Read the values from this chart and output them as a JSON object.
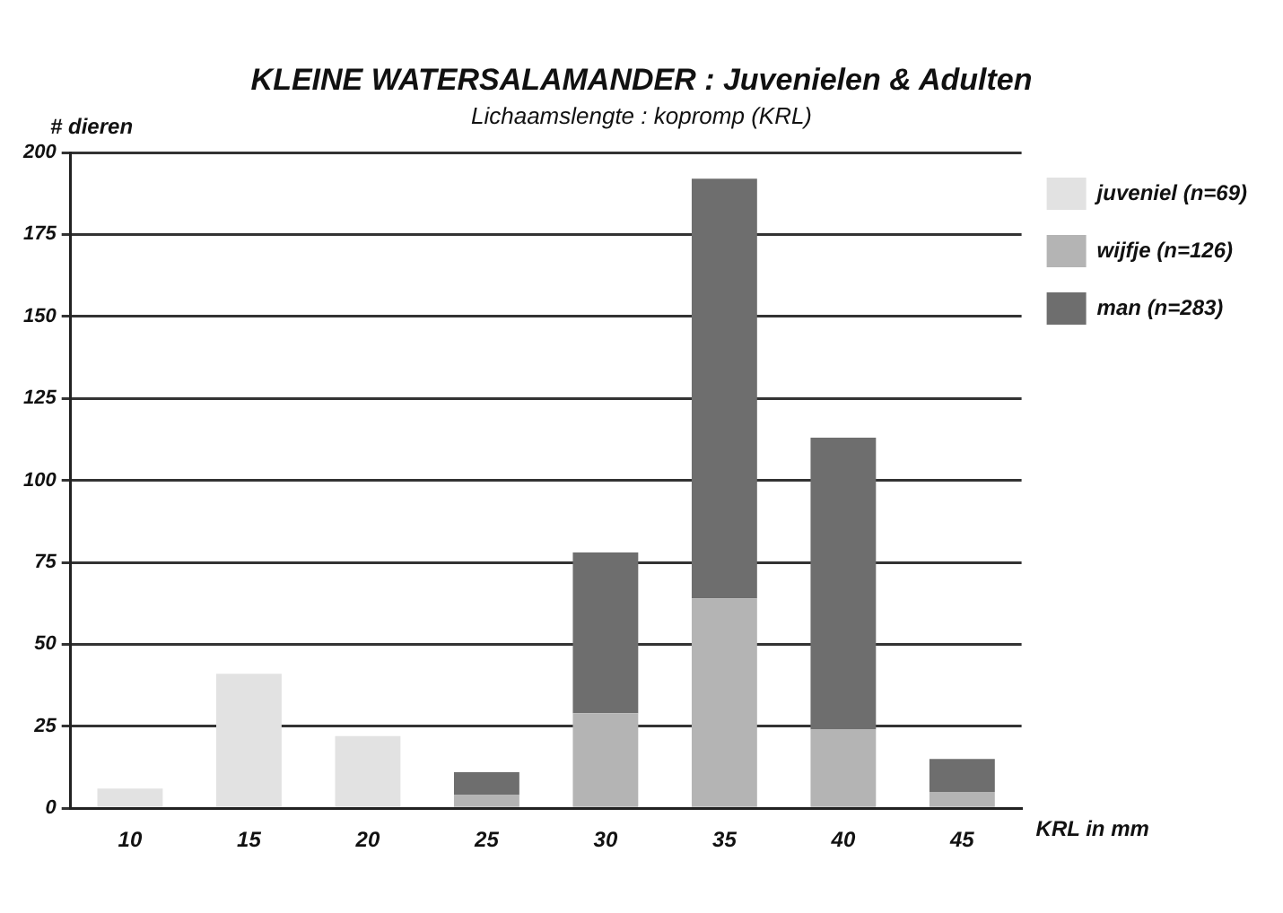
{
  "chart_data": {
    "type": "bar",
    "title": "KLEINE WATERSALAMANDER : Juvenielen & Adulten",
    "subtitle": "Lichaamslengte : kopromp (KRL)",
    "xlabel": "KRL in mm",
    "ylabel": "# dieren",
    "categories": [
      "10",
      "15",
      "20",
      "25",
      "30",
      "35",
      "40",
      "45"
    ],
    "series": [
      {
        "name": "juveniel (n=69)",
        "color": "#e2e2e2",
        "values": [
          6,
          41,
          22,
          0,
          0,
          0,
          0,
          0
        ]
      },
      {
        "name": "wijfje (n=126)",
        "color": "#b4b4b4",
        "values": [
          0,
          0,
          0,
          4,
          29,
          64,
          24,
          5
        ]
      },
      {
        "name": "man (n=283)",
        "color": "#6e6e6e",
        "values": [
          0,
          0,
          0,
          7,
          49,
          128,
          89,
          10
        ]
      }
    ],
    "stacked": true,
    "ylim": [
      0,
      200
    ],
    "yticks": [
      0,
      25,
      50,
      75,
      100,
      125,
      150,
      175,
      200
    ],
    "grid": "y",
    "legend": "top right"
  }
}
